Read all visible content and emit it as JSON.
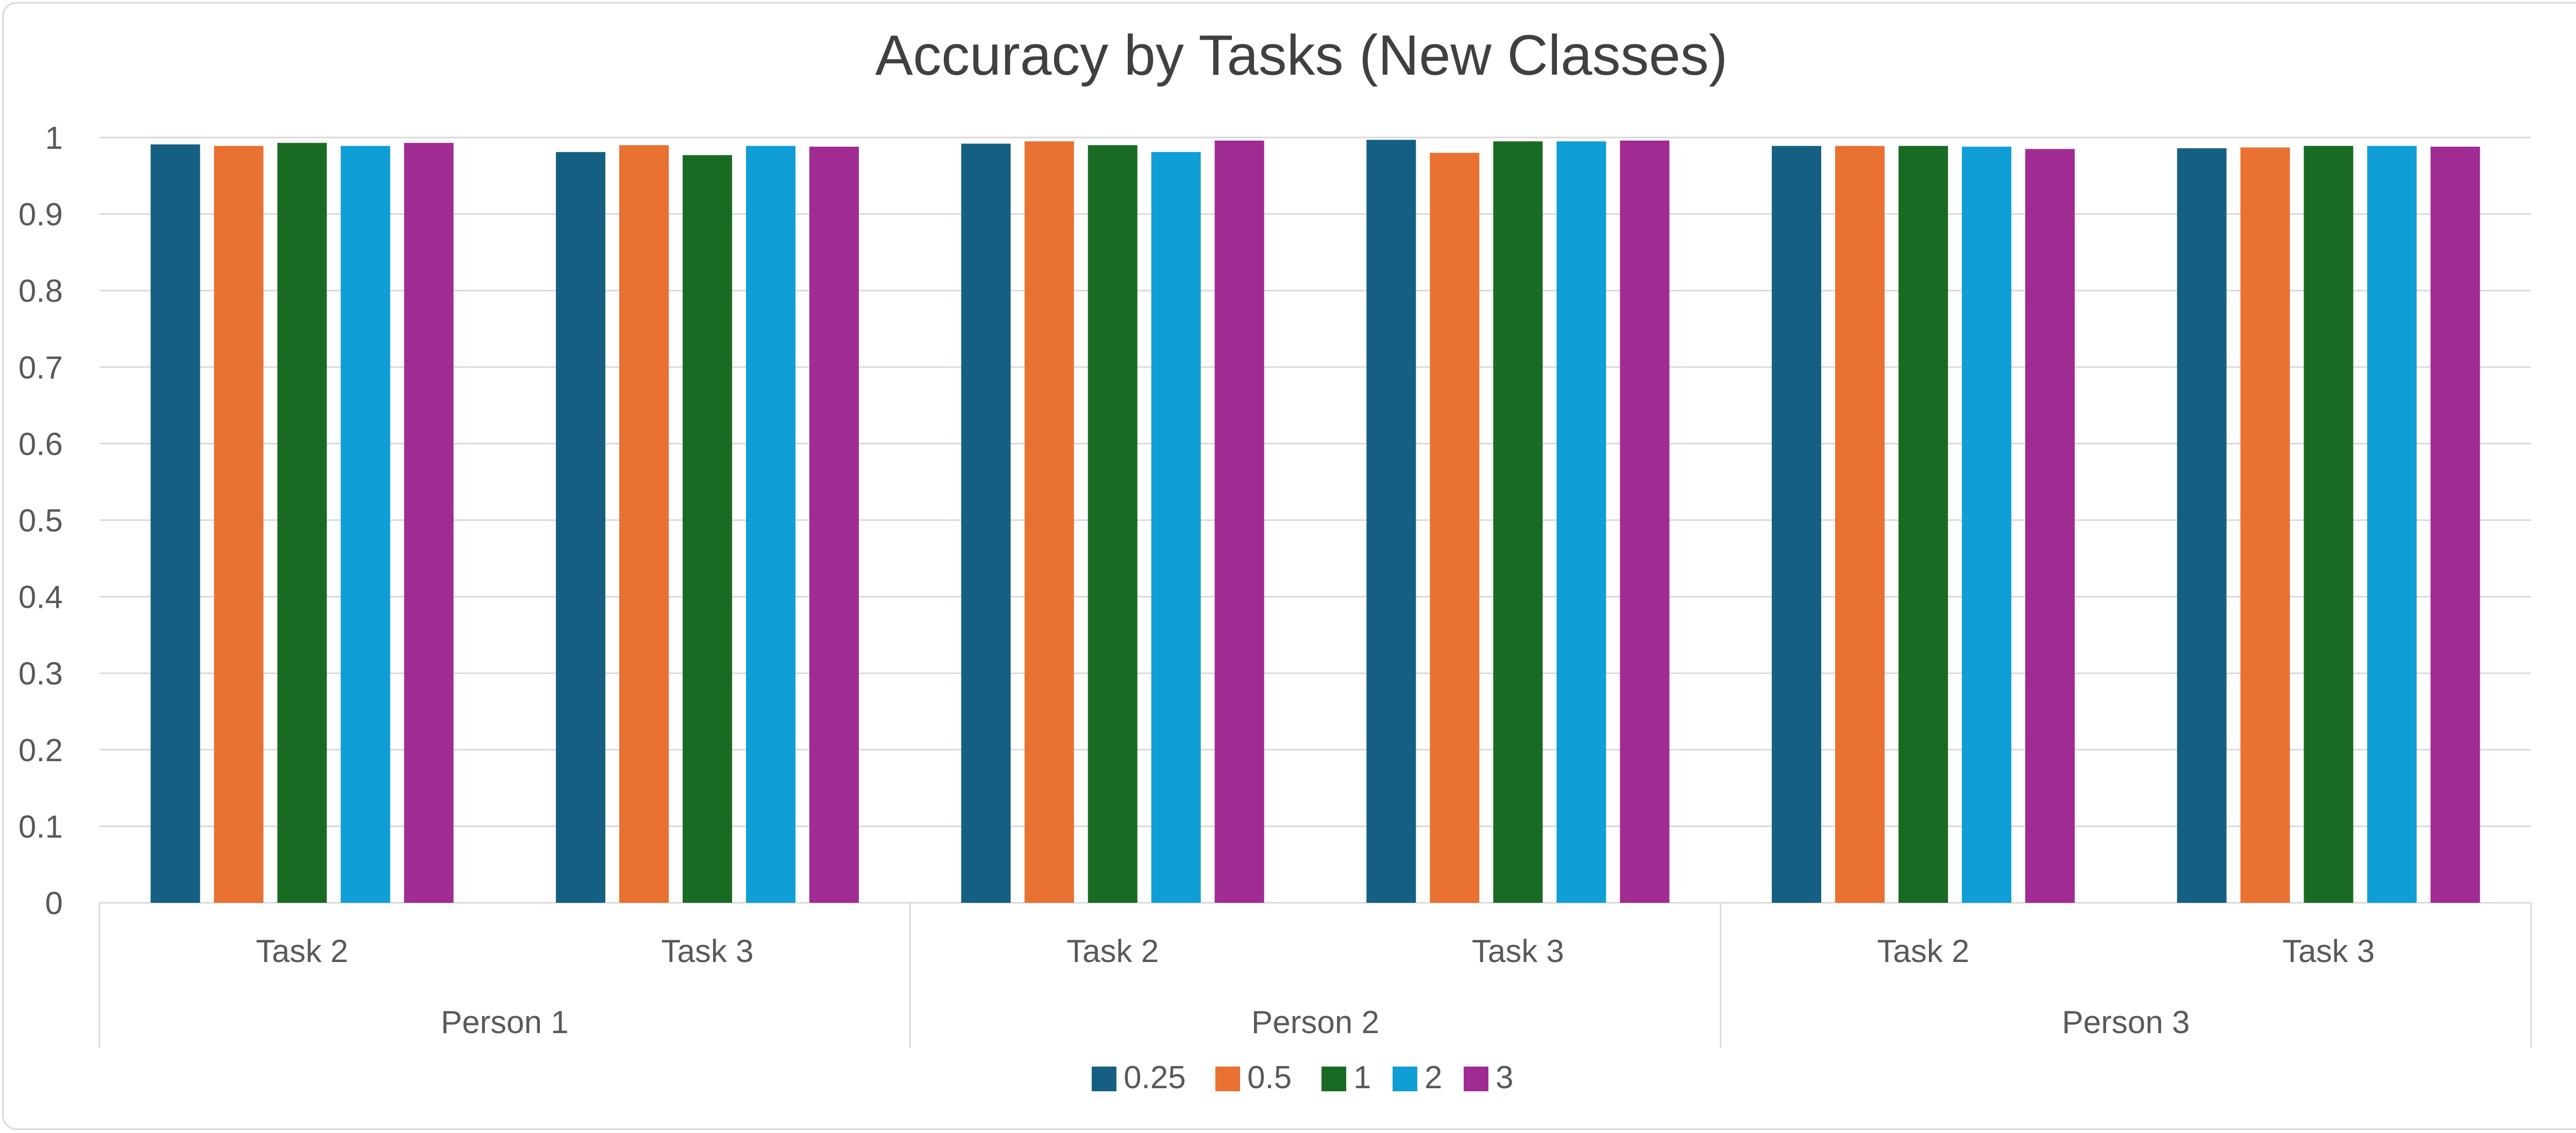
{
  "chart_data": {
    "type": "bar",
    "title": "Accuracy by Tasks (New Classes)",
    "xlabel": "",
    "ylabel": "",
    "ylim": [
      0,
      1
    ],
    "y_ticks": [
      "0",
      "0.1",
      "0.2",
      "0.3",
      "0.4",
      "0.5",
      "0.6",
      "0.7",
      "0.8",
      "0.9",
      "1"
    ],
    "groups": [
      "Person 1",
      "Person 2",
      "Person 3"
    ],
    "categories": [
      "Task 2",
      "Task 3",
      "Task 2",
      "Task 3",
      "Task 2",
      "Task 3"
    ],
    "grid": true,
    "legend_position": "bottom",
    "series": [
      {
        "name": "0.25",
        "color": "#156082",
        "values": [
          0.991,
          0.981,
          0.992,
          0.997,
          0.989,
          0.986
        ]
      },
      {
        "name": "0.5",
        "color": "#E97132",
        "values": [
          0.989,
          0.99,
          0.995,
          0.98,
          0.989,
          0.987
        ]
      },
      {
        "name": "1",
        "color": "#196B24",
        "values": [
          0.993,
          0.977,
          0.99,
          0.995,
          0.989,
          0.989
        ]
      },
      {
        "name": "2",
        "color": "#0F9ED5",
        "values": [
          0.989,
          0.989,
          0.981,
          0.995,
          0.988,
          0.989
        ]
      },
      {
        "name": "3",
        "color": "#A02B93",
        "values": [
          0.993,
          0.988,
          0.996,
          0.996,
          0.985,
          0.988
        ]
      }
    ]
  }
}
